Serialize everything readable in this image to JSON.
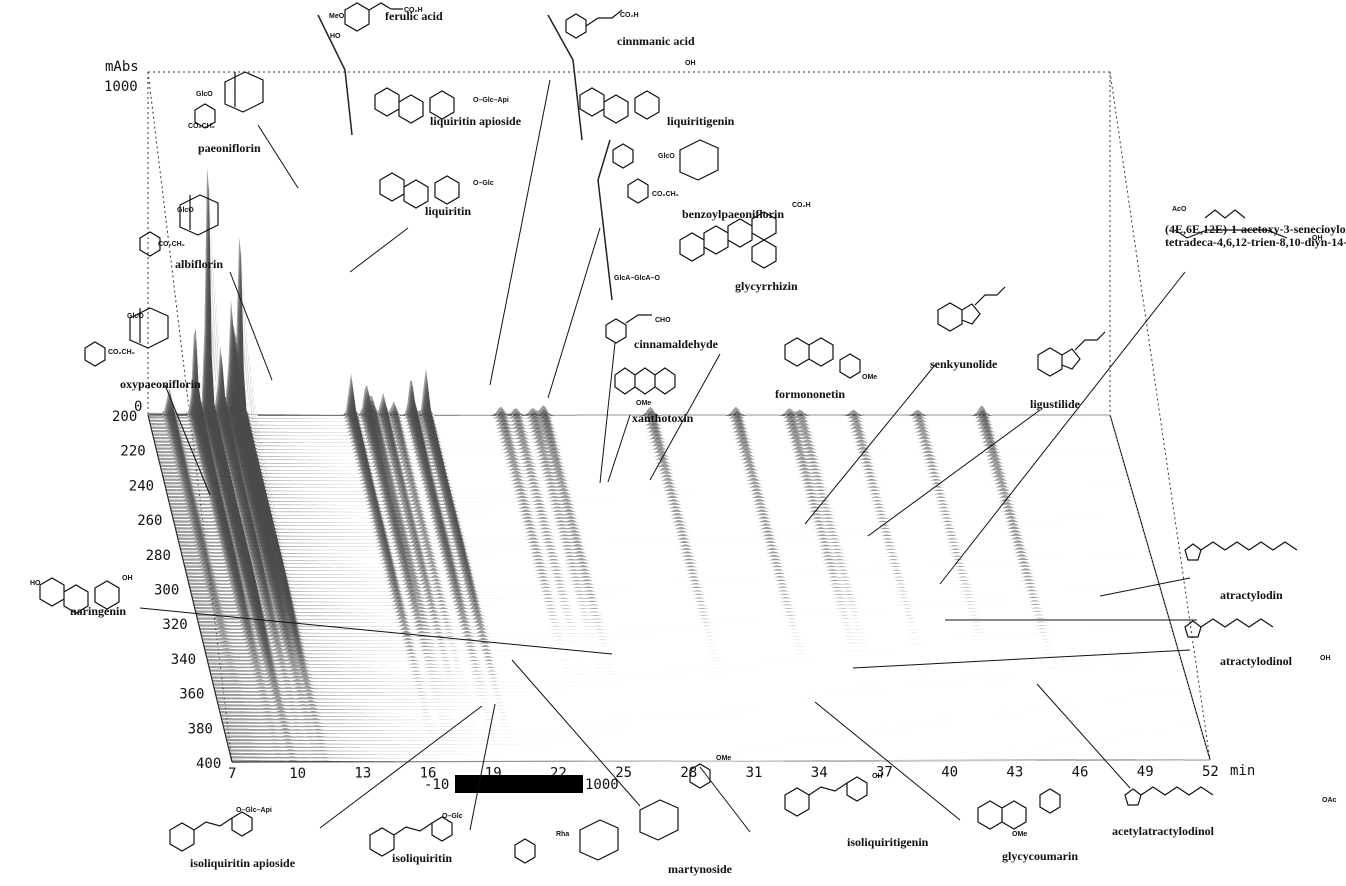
{
  "chart_data": {
    "type": "line",
    "subtype": "3D HPLC-DAD chromatogram (retention time × wavelength × absorbance)",
    "xlabel": "min",
    "ylabel": "mAbs",
    "zlabel": "",
    "xlim": [
      7,
      52
    ],
    "ylim": [
      0,
      1000
    ],
    "wavelength_range": [
      200,
      400
    ],
    "x_ticks": [
      "7",
      "10",
      "13",
      "16",
      "19",
      "22",
      "25",
      "28",
      "31",
      "34",
      "37",
      "40",
      "43",
      "46",
      "49",
      "52"
    ],
    "y_ticks": [
      "0",
      "1000"
    ],
    "wavelength_ticks": [
      "200",
      "220",
      "240",
      "260",
      "280",
      "300",
      "320",
      "340",
      "360",
      "380",
      "400"
    ],
    "colorbar_labels": [
      "-10",
      "1000"
    ],
    "peaks": [
      {
        "compound": "oxypaeoniflorin",
        "rt": 8.0,
        "height": 90
      },
      {
        "compound": "albiflorin",
        "rt": 9.2,
        "height": 330
      },
      {
        "compound": "paeoniflorin",
        "rt": 9.8,
        "height": 950
      },
      {
        "compound": "liquiritin",
        "rt": 11.3,
        "height": 680
      },
      {
        "compound": "liquiritin apioside",
        "rt": 10.9,
        "height": 420
      },
      {
        "compound": "ferulic acid",
        "rt": 10.4,
        "height": 250
      },
      {
        "compound": "cinnmanic acid",
        "rt": 16.5,
        "height": 150
      },
      {
        "compound": "liquiritigenin",
        "rt": 17.2,
        "height": 110
      },
      {
        "compound": "benzoylpaeoniflorin",
        "rt": 19.3,
        "height": 130
      },
      {
        "compound": "glycyrrhizin",
        "rt": 20.0,
        "height": 170
      },
      {
        "compound": "cinnamaldehyde",
        "rt": 23.5,
        "height": 30
      },
      {
        "compound": "xanthotoxin",
        "rt": 24.2,
        "height": 25
      },
      {
        "compound": "formononetin",
        "rt": 25.0,
        "height": 25
      },
      {
        "compound": "senkyunolide",
        "rt": 34.5,
        "height": 30
      },
      {
        "compound": "ligustilide",
        "rt": 37.0,
        "height": 25
      },
      {
        "compound": "(4E,6E,12E)-1-acetoxy-3-senecioyloxy-tetradeca-4,6,12-trien-8,10-diyn-14-ol",
        "rt": 40.0,
        "height": 20
      },
      {
        "compound": "atractylodin",
        "rt": 46.0,
        "height": 35
      },
      {
        "compound": "atractylodinol",
        "rt": 37.5,
        "height": 20
      },
      {
        "compound": "acetylatractylodinol",
        "rt": 43.0,
        "height": 20
      },
      {
        "compound": "naringenin",
        "rt": 19.5,
        "height": 20
      },
      {
        "compound": "isoliquiritin apioside",
        "rt": 17.5,
        "height": 60
      },
      {
        "compound": "isoliquiritin",
        "rt": 18.0,
        "height": 80
      },
      {
        "compound": "martynoside",
        "rt": 18.5,
        "height": 50
      },
      {
        "compound": "isoliquiritigenin",
        "rt": 25.5,
        "height": 35
      },
      {
        "compound": "glycycoumarin",
        "rt": 30.5,
        "height": 30
      }
    ],
    "annotations": {
      "oxypaeoniflorin": "oxypaeoniflorin",
      "albiflorin": "albiflorin",
      "paeoniflorin": "paeoniflorin",
      "ferulic_acid": "ferulic acid",
      "liquiritin_apioside": "liquiritin apioside",
      "liquiritin": "liquiritin",
      "cinnmanic_acid": "cinnmanic acid",
      "liquiritigenin": "liquiritigenin",
      "benzoylpaeoniflorin": "benzoylpaeoniflorin",
      "glycyrrhizin": "glycyrrhizin",
      "cinnamaldehyde": "cinnamaldehyde",
      "xanthotoxin": "xanthotoxin",
      "formononetin": "formononetin",
      "senkyunolide": "senkyunolide",
      "ligustilide": "ligustilide",
      "acetoxy_line1": "(4E,6E,12E)-1-acetoxy-3-senecioyloxy-",
      "acetoxy_line2": "tetradeca-4,6,12-trien-8,10-diyn-14-ol",
      "atractylodin": "atractylodin",
      "atractylodinol": "atractylodinol",
      "acetylatractylodinol": "acetylatractylodinol",
      "naringenin": "naringenin",
      "isoliquiritin_apioside": "isoliquiritin apioside",
      "isoliquiritin": "isoliquiritin",
      "martynoside": "martynoside",
      "isoliquiritigenin": "isoliquiritigenin",
      "glycycoumarin": "glycycoumarin"
    },
    "structure_text": {
      "meo": "MeO",
      "ho": "HO",
      "oh": "OH",
      "co2h": "CO₂H",
      "cho": "CHO",
      "glco": "GlcO",
      "co2ch2": "CO₂CH₂",
      "o_glc_api": "O–Glc–Api",
      "o_glc": "O–Glc",
      "ome": "OMe",
      "oac": "OAc",
      "aco": "AcO",
      "glca": "GlcA–GlcA–O",
      "rha": "Rha",
      "o": "O"
    }
  }
}
